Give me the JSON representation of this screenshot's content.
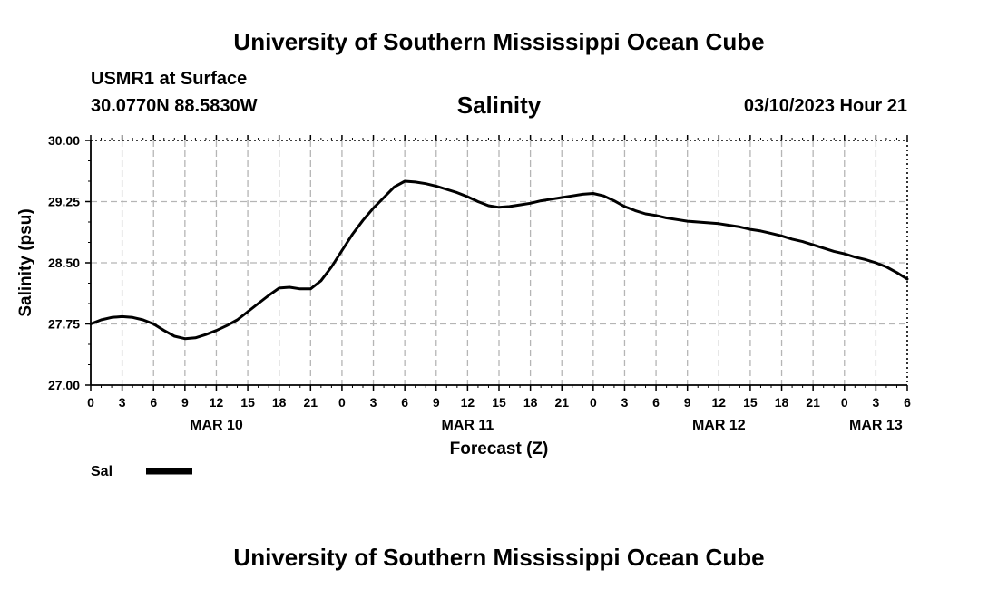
{
  "page_title_top": "University of Southern Mississippi Ocean Cube",
  "page_title_bottom": "University of Southern Mississippi Ocean Cube",
  "station": "USMR1 at Surface",
  "coordinates": "30.0770N  88.5830W",
  "date_hour": "03/10/2023 Hour 21",
  "chart_data": {
    "type": "line",
    "title": "Salinity",
    "xlabel": "Forecast (Z)",
    "ylabel": "Salinity (psu)",
    "xlim": [
      0,
      78
    ],
    "ylim": [
      27.0,
      30.0
    ],
    "yticks": [
      "27.00",
      "27.75",
      "28.50",
      "29.25",
      "30.00"
    ],
    "yticks_values": [
      27.0,
      27.75,
      28.5,
      29.25,
      30.0
    ],
    "xtick_labels": [
      "0",
      "3",
      "6",
      "9",
      "12",
      "15",
      "18",
      "21",
      "0",
      "3",
      "6",
      "9",
      "12",
      "15",
      "18",
      "21",
      "0",
      "3",
      "6",
      "9",
      "12",
      "15",
      "18",
      "21",
      "0",
      "3",
      "6"
    ],
    "date_labels": [
      {
        "hour": 12,
        "label": "MAR 10"
      },
      {
        "hour": 36,
        "label": "MAR 11"
      },
      {
        "hour": 60,
        "label": "MAR 12"
      },
      {
        "hour": 75,
        "label": "MAR 13"
      }
    ],
    "grid": true,
    "series": [
      {
        "name": "Sal",
        "color": "#000000",
        "x": [
          0,
          1,
          2,
          3,
          4,
          5,
          6,
          7,
          8,
          9,
          10,
          11,
          12,
          13,
          14,
          15,
          16,
          17,
          18,
          19,
          20,
          21,
          22,
          23,
          24,
          25,
          26,
          27,
          28,
          29,
          30,
          31,
          32,
          33,
          34,
          35,
          36,
          37,
          38,
          39,
          40,
          41,
          42,
          43,
          44,
          45,
          46,
          47,
          48,
          49,
          50,
          51,
          52,
          53,
          54,
          55,
          56,
          57,
          58,
          59,
          60,
          61,
          62,
          63,
          64,
          65,
          66,
          67,
          68,
          69,
          70,
          71,
          72,
          73,
          74,
          75,
          76,
          77,
          78
        ],
        "values": [
          27.75,
          27.8,
          27.83,
          27.84,
          27.83,
          27.8,
          27.75,
          27.67,
          27.6,
          27.57,
          27.58,
          27.62,
          27.67,
          27.73,
          27.8,
          27.9,
          28.0,
          28.1,
          28.19,
          28.2,
          28.18,
          28.18,
          28.28,
          28.45,
          28.65,
          28.85,
          29.02,
          29.17,
          29.3,
          29.43,
          29.5,
          29.49,
          29.47,
          29.44,
          29.4,
          29.36,
          29.31,
          29.25,
          29.2,
          29.18,
          29.19,
          29.21,
          29.23,
          29.26,
          29.28,
          29.3,
          29.32,
          29.34,
          29.35,
          29.32,
          29.26,
          29.19,
          29.14,
          29.1,
          29.08,
          29.05,
          29.03,
          29.01,
          29.0,
          28.99,
          28.98,
          28.96,
          28.94,
          28.91,
          28.89,
          28.86,
          28.83,
          28.79,
          28.76,
          28.72,
          28.68,
          28.64,
          28.61,
          28.57,
          28.54,
          28.5,
          28.45,
          28.38,
          28.3
        ]
      }
    ],
    "legend": {
      "placement": "bottom-left",
      "label": "Sal"
    }
  }
}
